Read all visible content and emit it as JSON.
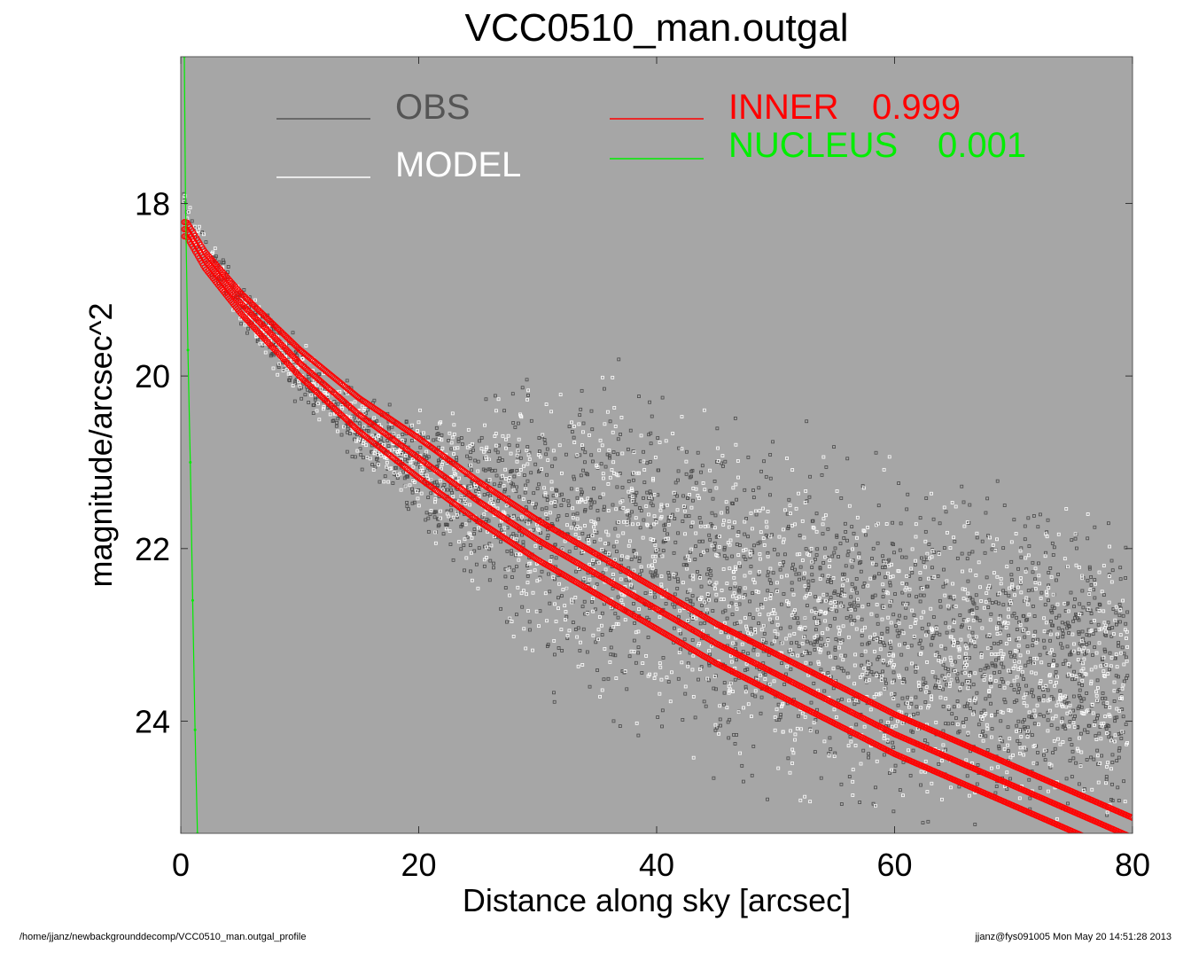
{
  "chart_data": {
    "type": "scatter",
    "title": "VCC0510_man.outgal",
    "xlabel": "Distance along sky [arcsec]",
    "ylabel": "magnitude/arcsec^2",
    "xlim": [
      0,
      80
    ],
    "ylim": [
      25.3,
      16.3
    ],
    "y_inverted": true,
    "x_ticks": [
      "0",
      "20",
      "40",
      "60",
      "80"
    ],
    "x_tick_values": [
      0,
      20,
      40,
      60,
      80
    ],
    "y_ticks": [
      "18",
      "20",
      "22",
      "24"
    ],
    "y_tick_values": [
      18,
      20,
      22,
      24
    ],
    "grid": false,
    "plot_background": "#a6a6a6",
    "legend": [
      {
        "label": "OBS",
        "color": "#555555"
      },
      {
        "label": "MODEL",
        "color": "#ffffff"
      },
      {
        "label": "INNER",
        "value": "0.999",
        "color": "#ff0000"
      },
      {
        "label": "NUCLEUS",
        "value": "0.001",
        "color": "#00ee00"
      }
    ],
    "series": [
      {
        "name": "OBS",
        "color": "#4a4a4a",
        "x": [
          0.2,
          1,
          2,
          3,
          5,
          8,
          12,
          16,
          20,
          25,
          30,
          35,
          40,
          45,
          50,
          55,
          60,
          65,
          70,
          75,
          79.5
        ],
        "y": [
          17.9,
          18.3,
          18.55,
          18.75,
          19.1,
          19.65,
          20.25,
          20.7,
          21.05,
          21.4,
          21.7,
          21.95,
          22.2,
          22.5,
          22.75,
          22.95,
          23.1,
          23.25,
          23.35,
          23.45,
          23.5
        ],
        "scatter_band_y": [
          0.15,
          0.15,
          0.2,
          0.2,
          0.25,
          0.3,
          0.35,
          0.45,
          0.6,
          1.0,
          1.5,
          1.7,
          1.8,
          1.8,
          1.8,
          1.8,
          1.8,
          1.8,
          1.8,
          1.8,
          1.8
        ]
      },
      {
        "name": "MODEL",
        "color": "#ffffff",
        "x": [
          0.2,
          1,
          2,
          3,
          5,
          8,
          12,
          16,
          20,
          25,
          30,
          35,
          40,
          45,
          50,
          55,
          60,
          65,
          70,
          75,
          79.5
        ],
        "y": [
          17.9,
          18.3,
          18.55,
          18.75,
          19.1,
          19.65,
          20.25,
          20.7,
          21.05,
          21.4,
          21.7,
          21.95,
          22.2,
          22.5,
          22.75,
          22.95,
          23.1,
          23.25,
          23.35,
          23.45,
          23.5
        ]
      },
      {
        "name": "INNER",
        "color": "#ff0000",
        "x": [
          0.5,
          2,
          5,
          10,
          15,
          20,
          25,
          30,
          35,
          40,
          45,
          50,
          55,
          60,
          65,
          70,
          75,
          80
        ],
        "y": [
          18.3,
          18.65,
          19.15,
          19.85,
          20.45,
          20.95,
          21.45,
          21.9,
          22.3,
          22.7,
          23.1,
          23.45,
          23.8,
          24.15,
          24.45,
          24.75,
          25.05,
          25.35
        ]
      },
      {
        "name": "NUCLEUS",
        "color": "#00ee00",
        "x": [
          0.3,
          0.4,
          0.6,
          0.8,
          1.0,
          1.2,
          1.4
        ],
        "y": [
          16.3,
          18.0,
          19.7,
          21.0,
          22.6,
          24.1,
          25.3
        ]
      }
    ]
  },
  "footer": {
    "left": "/home/jjanz/newbackgrounddecomp/VCC0510_man.outgal_profile",
    "right": "jjanz@fys091005  Mon May 20 14:51:28 2013"
  }
}
